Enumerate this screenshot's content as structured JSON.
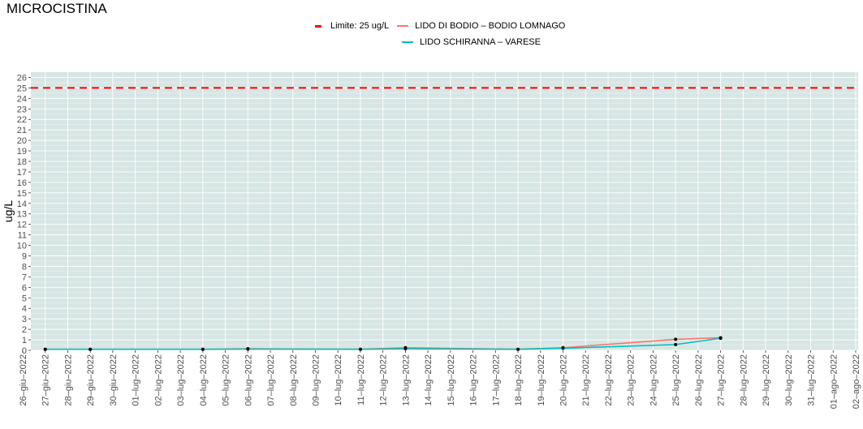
{
  "chart_data": {
    "type": "line",
    "title": "MICROCISTINA",
    "ylabel": "ug/L",
    "xlabel": "",
    "ylim": [
      0,
      26.5
    ],
    "y_ticks": [
      0,
      1,
      2,
      3,
      4,
      5,
      6,
      7,
      8,
      9,
      10,
      11,
      12,
      13,
      14,
      15,
      16,
      17,
      18,
      19,
      20,
      21,
      22,
      23,
      24,
      25,
      26
    ],
    "x_ticks": [
      "26–giu–2022",
      "27–giu–2022",
      "28–giu–2022",
      "29–giu–2022",
      "30–giu–2022",
      "01–lug–2022",
      "02–lug–2022",
      "03–lug–2022",
      "04–lug–2022",
      "05–lug–2022",
      "06–lug–2022",
      "07–lug–2022",
      "08–lug–2022",
      "09–lug–2022",
      "10–lug–2022",
      "11–lug–2022",
      "12–lug–2022",
      "13–lug–2022",
      "14–lug–2022",
      "15–lug–2022",
      "16–lug–2022",
      "17–lug–2022",
      "18–lug–2022",
      "19–lug–2022",
      "20–lug–2022",
      "21–lug–2022",
      "22–lug–2022",
      "23–lug–2022",
      "24–lug–2022",
      "25–lug–2022",
      "26–lug–2022",
      "27–lug–2022",
      "28–lug–2022",
      "29–lug–2022",
      "30–lug–2022",
      "31–lug–2022",
      "01–ago–2022",
      "02–ago–2022"
    ],
    "grid": true,
    "legend_position": "top",
    "threshold": {
      "name": "Limite: 25 ug/L",
      "value": 25,
      "color": "#ff0000",
      "style": "dashed"
    },
    "series": [
      {
        "name": "LIDO DI BODIO – BODIO LOMNAGO",
        "color": "#f8766d",
        "x": [
          "27–giu–2022",
          "29–giu–2022",
          "04–lug–2022",
          "06–lug–2022",
          "11–lug–2022",
          "13–lug–2022",
          "18–lug–2022",
          "20–lug–2022",
          "25–lug–2022",
          "27–lug–2022"
        ],
        "values": [
          0.1,
          0.1,
          0.1,
          0.15,
          0.1,
          0.25,
          0.1,
          0.25,
          1.05,
          1.2
        ]
      },
      {
        "name": "LIDO SCHIRANNA – VARESE",
        "color": "#00bfc4",
        "x": [
          "27–giu–2022",
          "29–giu–2022",
          "04–lug–2022",
          "06–lug–2022",
          "11–lug–2022",
          "13–lug–2022",
          "18–lug–2022",
          "20–lug–2022",
          "25–lug–2022",
          "27–lug–2022"
        ],
        "values": [
          0.1,
          0.1,
          0.1,
          0.12,
          0.1,
          0.15,
          0.1,
          0.2,
          0.55,
          1.15
        ]
      }
    ]
  }
}
